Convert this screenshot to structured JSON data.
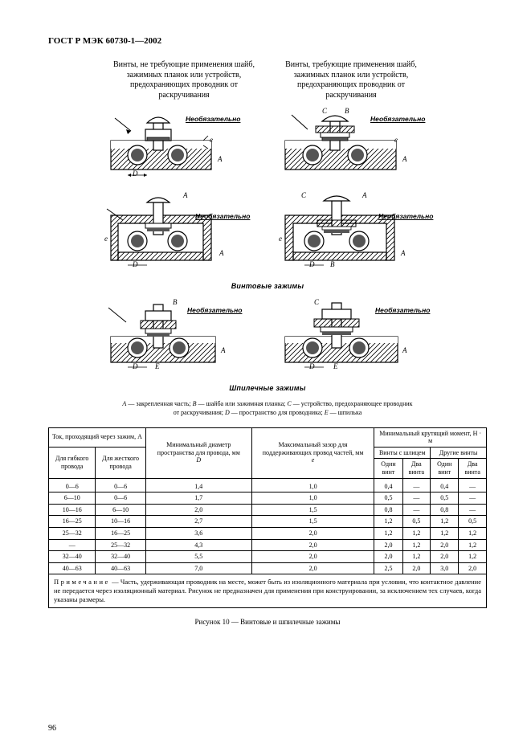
{
  "doc_title": "ГОСТ Р МЭК 60730-1—2002",
  "header_left": "Винты, не требующие применения шайб, зажимных планок или устройств, предохраняющих проводник от раскручивания",
  "header_right": "Винты, требующие применения шайб, зажимных планок или устройств, предохраняющих проводник от раскручивания",
  "optional_label": "Необязательно",
  "caption1": "Винтовые зажимы",
  "caption2": "Шпилечные зажимы",
  "legend": "A — закрепленная часть; B — шайба или зажимная планка; C — устройство, предохраняющее проводник от раскручивания; D — пространство для проводника; E — шпилька",
  "table": {
    "h_tok": "Ток, проходящий через зажим, А",
    "h_gib": "Для гибкого провода",
    "h_zhest": "Для жесткого провода",
    "h_diam": "Минимальный диаметр пространства для провода, мм",
    "h_diam_sym": "D",
    "h_zazor": "Максимальный зазор для поддерживающих провод частей, мм",
    "h_zazor_sym": "e",
    "h_moment": "Минимальный крутящий момент, Н · м",
    "h_shlic": "Винты с шлицем",
    "h_drugie": "Другие винты",
    "h_odin": "Один винт",
    "h_dva": "Два винта",
    "rows": [
      {
        "g": "0—6",
        "z": "0—6",
        "d": "1,4",
        "e": "1,0",
        "s1": "0,4",
        "s2": "—",
        "d1": "0,4",
        "d2": "—"
      },
      {
        "g": "6—10",
        "z": "0—6",
        "d": "1,7",
        "e": "1,0",
        "s1": "0,5",
        "s2": "—",
        "d1": "0,5",
        "d2": "—"
      },
      {
        "g": "10—16",
        "z": "6—10",
        "d": "2,0",
        "e": "1,5",
        "s1": "0,8",
        "s2": "—",
        "d1": "0,8",
        "d2": "—"
      },
      {
        "g": "16—25",
        "z": "10—16",
        "d": "2,7",
        "e": "1,5",
        "s1": "1,2",
        "s2": "0,5",
        "d1": "1,2",
        "d2": "0,5"
      },
      {
        "g": "25—32",
        "z": "16—25",
        "d": "3,6",
        "e": "2,0",
        "s1": "1,2",
        "s2": "1,2",
        "d1": "1,2",
        "d2": "1,2"
      },
      {
        "g": "—",
        "z": "25—32",
        "d": "4,3",
        "e": "2,0",
        "s1": "2,0",
        "s2": "1,2",
        "d1": "2,0",
        "d2": "1,2"
      },
      {
        "g": "32—40",
        "z": "32—40",
        "d": "5,5",
        "e": "2,0",
        "s1": "2,0",
        "s2": "1,2",
        "d1": "2,0",
        "d2": "1,2"
      },
      {
        "g": "40—63",
        "z": "40—63",
        "d": "7,0",
        "e": "2,0",
        "s1": "2,5",
        "s2": "2,0",
        "d1": "3,0",
        "d2": "2,0"
      }
    ]
  },
  "note_prefix": "Примечание",
  "note_body": " — Часть, удерживающая проводник на месте, может быть из изоляционного материала при условии, что контактное давление не передается через изоляционный материал. Рисунок не предназначен для применения при конструировании, за исключением тех случаев, когда указаны размеры.",
  "figure_title": "Рисунок 10 — Винтовые и шпилечные зажимы",
  "page_number": "96",
  "letters": {
    "A": "A",
    "B": "B",
    "C": "C",
    "D": "D",
    "E": "E",
    "e": "e"
  },
  "svg": {
    "hatch_stroke": "#000000",
    "fill_dark": "#555555",
    "bg": "#ffffff",
    "stroke_w": 1.2
  }
}
